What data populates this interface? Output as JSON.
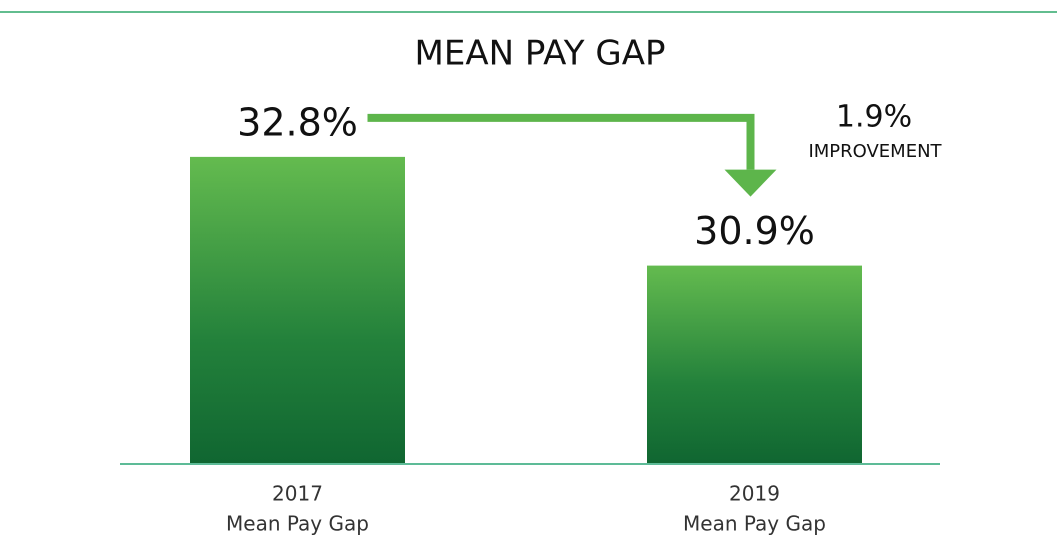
{
  "chart_data": {
    "type": "bar",
    "title": "MEAN PAY GAP",
    "categories": [
      "2017",
      "2019"
    ],
    "category_sublabels": [
      "Mean Pay Gap",
      "Mean Pay Gap"
    ],
    "values": [
      32.8,
      30.9
    ],
    "value_labels": [
      "32.8%",
      "30.9%"
    ],
    "color": [
      "#64bb4f",
      "#106631"
    ],
    "ylim": [
      27.45,
      35
    ],
    "annotation": {
      "value": 1.9,
      "label": "1.9%",
      "text": "IMPROVEMENT"
    }
  }
}
